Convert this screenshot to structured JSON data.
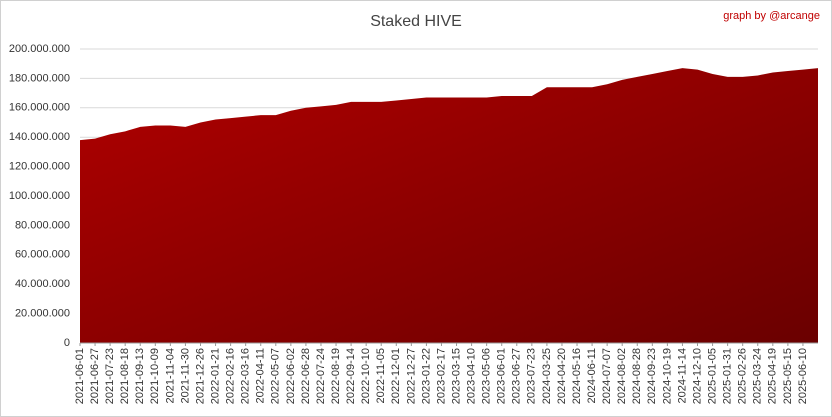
{
  "chart_data": {
    "type": "area",
    "title": "Staked HIVE",
    "credit": "graph by @arcange",
    "categories": [
      "2021-06-01",
      "2021-06-27",
      "2021-07-23",
      "2021-08-18",
      "2021-09-13",
      "2021-10-09",
      "2021-11-04",
      "2021-11-30",
      "2021-12-26",
      "2022-01-21",
      "2022-02-16",
      "2022-03-16",
      "2022-04-11",
      "2022-05-07",
      "2022-06-02",
      "2022-06-28",
      "2022-07-24",
      "2022-08-19",
      "2022-09-14",
      "2022-10-10",
      "2022-11-05",
      "2022-12-01",
      "2022-12-27",
      "2023-01-22",
      "2023-02-17",
      "2023-03-15",
      "2023-04-10",
      "2023-05-06",
      "2023-06-01",
      "2023-06-27",
      "2023-07-23",
      "2024-03-25",
      "2024-04-20",
      "2024-05-16",
      "2024-06-11",
      "2024-07-07",
      "2024-08-02",
      "2024-08-28",
      "2024-09-23",
      "2024-10-19",
      "2024-11-14",
      "2024-12-10",
      "2025-01-05",
      "2025-01-31",
      "2025-02-26",
      "2025-03-24",
      "2025-04-19",
      "2025-05-15",
      "2025-06-10",
      null
    ],
    "values": [
      138000000,
      139000000,
      142000000,
      144000000,
      147000000,
      148000000,
      148000000,
      147000000,
      150000000,
      152000000,
      153000000,
      154000000,
      155000000,
      155000000,
      158000000,
      160000000,
      161000000,
      162000000,
      164000000,
      164000000,
      164000000,
      165000000,
      166000000,
      167000000,
      167000000,
      167000000,
      167000000,
      167000000,
      168000000,
      168000000,
      168000000,
      174000000,
      174000000,
      174000000,
      174000000,
      176000000,
      179000000,
      181000000,
      183000000,
      185000000,
      187000000,
      186000000,
      183000000,
      181000000,
      181000000,
      182000000,
      184000000,
      185000000,
      186000000,
      187000000
    ],
    "color": "#b00000",
    "ylim": [
      0,
      200000000
    ],
    "yticks": [
      0,
      {
        "value": 20000000,
        "label": "20.000.000"
      },
      {
        "value": 40000000,
        "label": "40.000.000"
      },
      {
        "value": 60000000,
        "label": "60.000.000"
      },
      {
        "value": 80000000,
        "label": "80.000.000"
      },
      {
        "value": 100000000,
        "label": "100.000.000"
      },
      {
        "value": 120000000,
        "label": "120.000.000"
      },
      {
        "value": 140000000,
        "label": "140.000.000"
      },
      {
        "value": 160000000,
        "label": "160.000.000"
      },
      {
        "value": 180000000,
        "label": "180.000.000"
      },
      {
        "value": 200000000,
        "label": "200.000.000"
      }
    ],
    "grid": true
  }
}
